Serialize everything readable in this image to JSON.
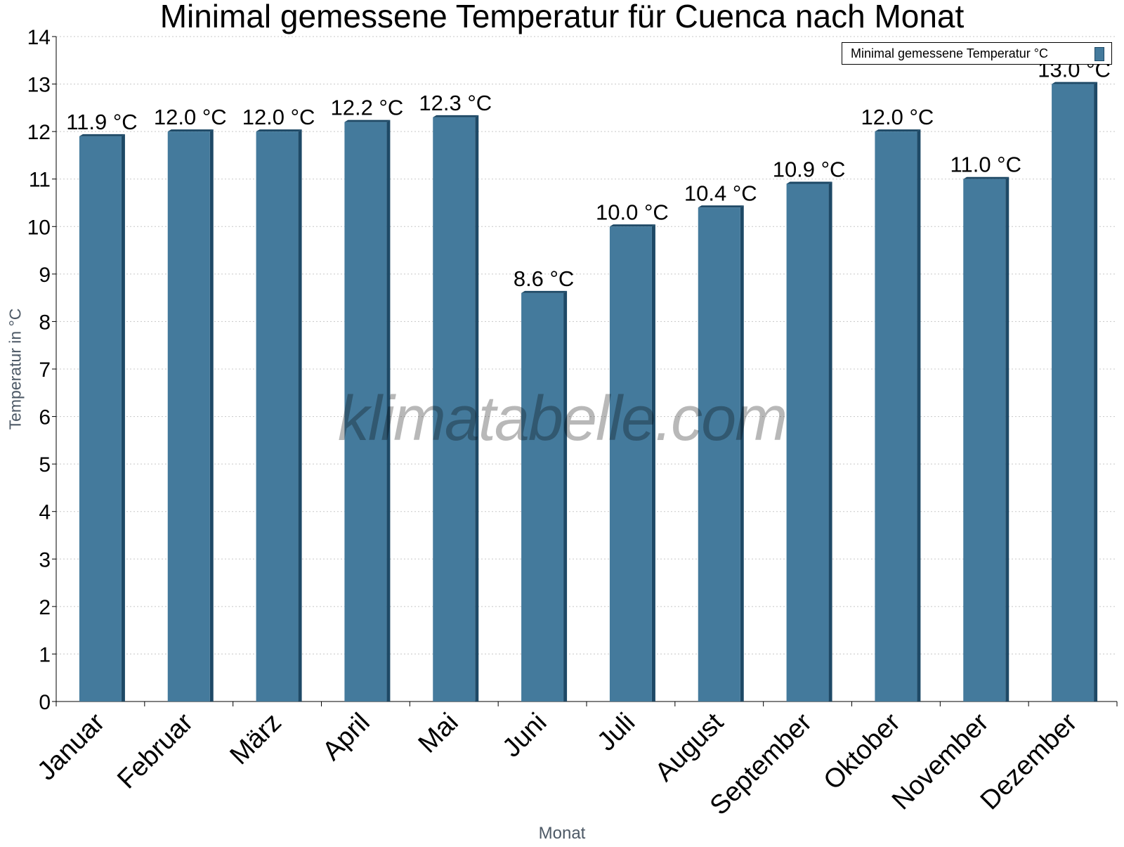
{
  "chart_data": {
    "type": "bar",
    "title": "Minimal gemessene Temperatur für Cuenca nach Monat",
    "xlabel": "Monat",
    "ylabel": "Temperatur in °C",
    "ylim": [
      0,
      14
    ],
    "yticks": [
      0,
      1,
      2,
      3,
      4,
      5,
      6,
      7,
      8,
      9,
      10,
      11,
      12,
      13,
      14
    ],
    "grid": true,
    "legend_position": "top-right",
    "categories": [
      "Januar",
      "Februar",
      "März",
      "April",
      "Mai",
      "Juni",
      "Juli",
      "August",
      "September",
      "Oktober",
      "November",
      "Dezember"
    ],
    "series": [
      {
        "name": "Minimal gemessene Temperatur °C",
        "color": "#447a9c",
        "values": [
          11.9,
          12.0,
          12.0,
          12.2,
          12.3,
          8.6,
          10.0,
          10.4,
          10.9,
          12.0,
          11.0,
          13.0
        ],
        "labels": [
          "11.9 °C",
          "12.0 °C",
          "12.0 °C",
          "12.2 °C",
          "12.3 °C",
          "8.6 °C",
          "10.0 °C",
          "10.4 °C",
          "10.9 °C",
          "12.0 °C",
          "11.0 °C",
          "13.0 °C"
        ]
      }
    ]
  },
  "watermark": "klimatabelle.com"
}
